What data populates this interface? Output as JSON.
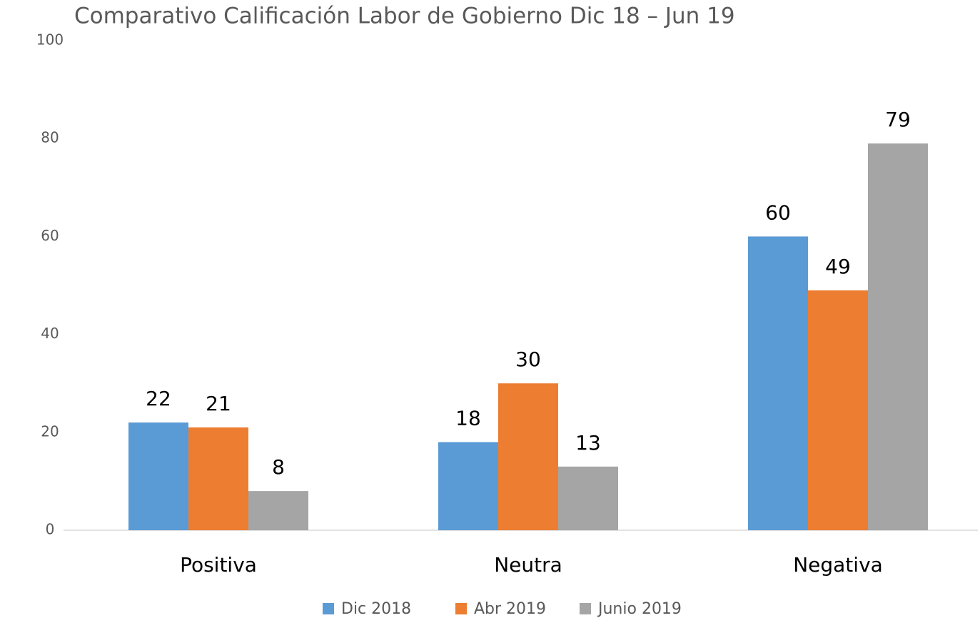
{
  "chart_data": {
    "type": "bar",
    "title": "Comparativo Calificación Labor de Gobierno  Dic 18 – Jun 19",
    "categories": [
      "Positiva",
      "Neutra",
      "Negativa"
    ],
    "series": [
      {
        "name": "Dic 2018",
        "color": "#5b9bd5",
        "values": [
          22,
          18,
          60
        ]
      },
      {
        "name": "Abr 2019",
        "color": "#ed7d31",
        "values": [
          21,
          30,
          49
        ]
      },
      {
        "name": "Junio 2019",
        "color": "#a5a5a5",
        "values": [
          8,
          13,
          79
        ]
      }
    ],
    "ylim": [
      0,
      100
    ],
    "yticks": [
      0,
      20,
      40,
      60,
      80,
      100
    ],
    "grid": false,
    "legend": "bottom"
  }
}
